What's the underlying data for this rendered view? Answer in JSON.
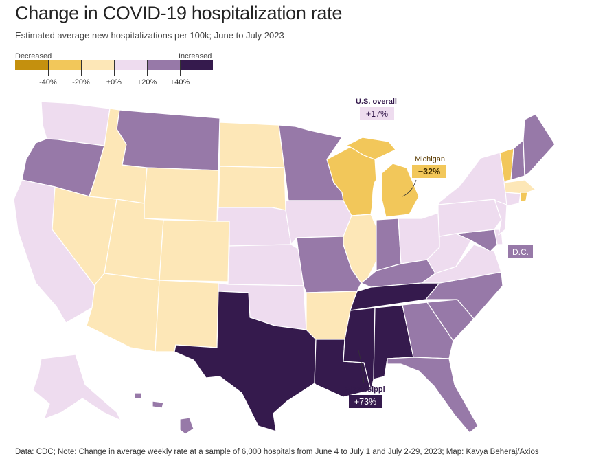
{
  "title": "Change in COVID-19 hospitalization rate",
  "subtitle": "Estimated average new hospitalizations per 100k; June to July 2023",
  "legend": {
    "low_label": "Decreased",
    "high_label": "Increased",
    "ticks": [
      "-40%",
      "-20%",
      "±0%",
      "+20%",
      "+40%"
    ],
    "colors": [
      "#c4900e",
      "#f2c75a",
      "#fde7b7",
      "#eedcef",
      "#9779a8",
      "#351a4d"
    ]
  },
  "callouts": {
    "us_overall": {
      "label": "U.S. overall",
      "value": "+17%"
    },
    "michigan": {
      "label": "Michigan",
      "value": "−32%"
    },
    "dc": {
      "label": "D.C."
    },
    "mississippi": {
      "label": "Mississippi",
      "value": "+73%"
    }
  },
  "footer": {
    "prefix": "Data: ",
    "source": "CDC",
    "rest": "; Note: Change in average weekly rate at a sample of 6,000 hospitals from June 4 to July 1 and July 2-29, 2023; Map: Kavya Beheraj/Axios"
  },
  "states": {
    "WA": "+0–20%",
    "OR": "+20–40%",
    "CA": "+0–20%",
    "NV": "-20–0%",
    "ID": "-20–0%",
    "MT": "+20–40%",
    "WY": "-20–0%",
    "UT": "-20–0%",
    "AZ": "-20–0%",
    "CO": "-20–0%",
    "NM": "-20–0%",
    "ND": "-20–0%",
    "SD": "-20–0%",
    "NE": "+0–20%",
    "KS": "+0–20%",
    "OK": "+0–20%",
    "TX": "above +40%",
    "MN": "+20–40%",
    "IA": "+0–20%",
    "MO": "+20–40%",
    "AR": "-20–0%",
    "LA": "above +40%",
    "WI": "-40– -20%",
    "IL": "-20–0%",
    "MI": "-40– -20%",
    "IN": "+20–40%",
    "OH": "+0–20%",
    "KY": "+20–40%",
    "TN": "above +40%",
    "MS": "above +40%",
    "AL": "above +40%",
    "GA": "+20–40%",
    "FL": "+20–40%",
    "SC": "+20–40%",
    "NC": "+20–40%",
    "VA": "+0–20%",
    "WV": "+0–20%",
    "PA": "+0–20%",
    "NY": "+0–20%",
    "VT": "-40– -20%",
    "NH": "+20–40%",
    "ME": "+20–40%",
    "MA": "-20–0%",
    "RI": "-40– -20%",
    "CT": "+0–20%",
    "NJ": "+0–20%",
    "DE": "+0–20%",
    "MD": "+20–40%",
    "DC": "+20–40%",
    "AK": "+0–20%",
    "HI": "+20–40%"
  }
}
